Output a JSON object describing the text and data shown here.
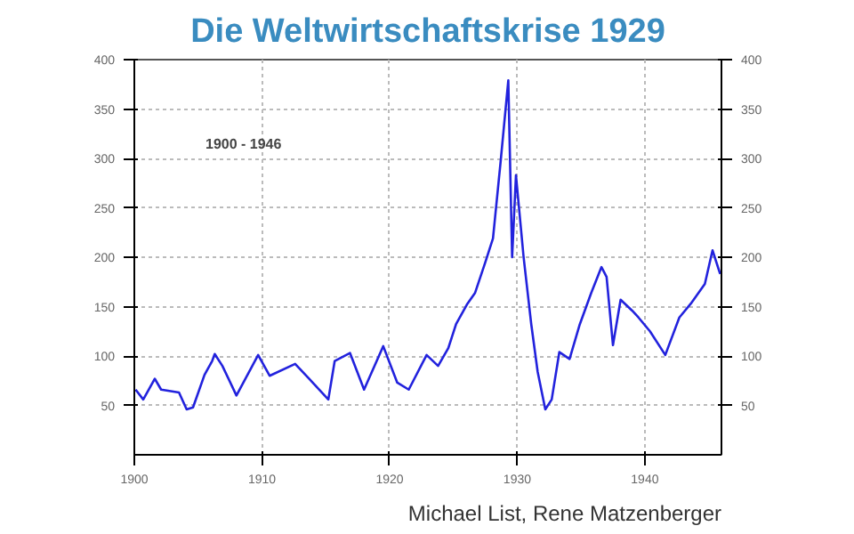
{
  "chart_data": {
    "type": "line",
    "title": "Die Weltwirtschaftskrise 1929",
    "x": [
      1900.1,
      1900.7,
      1901.6,
      1902.1,
      1903.5,
      1904.1,
      1904.6,
      1905.5,
      1906.1,
      1906.3,
      1906.9,
      1908.0,
      1909.7,
      1910.6,
      1912.6,
      1913.7,
      1915.2,
      1915.7,
      1916.9,
      1918.0,
      1919.5,
      1920.6,
      1921.5,
      1922.9,
      1923.8,
      1924.6,
      1925.2,
      1926.1,
      1926.7,
      1927.5,
      1928.1,
      1928.7,
      1929.3,
      1929.6,
      1929.9,
      1930.5,
      1931.1,
      1931.6,
      1932.2,
      1932.7,
      1933.3,
      1934.1,
      1934.9,
      1935.8,
      1936.6,
      1937.0,
      1937.5,
      1938.1,
      1939.0,
      1939.5,
      1940.4,
      1941.6,
      1942.7,
      1943.6,
      1944.7,
      1945.3,
      1945.9
    ],
    "series": [
      {
        "color": "#2222dd",
        "values": [
          66,
          56,
          77,
          66,
          63,
          46,
          48,
          81,
          95,
          102,
          90,
          60,
          101,
          80,
          92,
          77,
          56,
          95,
          103,
          66,
          110,
          73,
          66,
          101,
          90,
          108,
          132,
          153,
          164,
          195,
          219,
          297,
          379,
          200,
          283,
          200,
          132,
          84,
          46,
          56,
          104,
          97,
          132,
          164,
          190,
          180,
          111,
          157,
          146,
          139,
          125,
          101,
          139,
          153,
          173,
          207,
          183
        ]
      }
    ],
    "xlim": [
      1900,
      1946
    ],
    "ylim": [
      0,
      400
    ],
    "y2lim": [
      0,
      400
    ],
    "xticks": [
      1900,
      1910,
      1920,
      1930,
      1940
    ],
    "yticks": [
      50,
      100,
      150,
      200,
      250,
      300,
      350,
      400
    ],
    "y2ticks": [
      50,
      100,
      150,
      200,
      250,
      300,
      350,
      400
    ],
    "grid": true,
    "line_style": "solid",
    "annotations": [
      "1900 - 1946",
      "Michael List, Rene Matzenberger"
    ]
  }
}
